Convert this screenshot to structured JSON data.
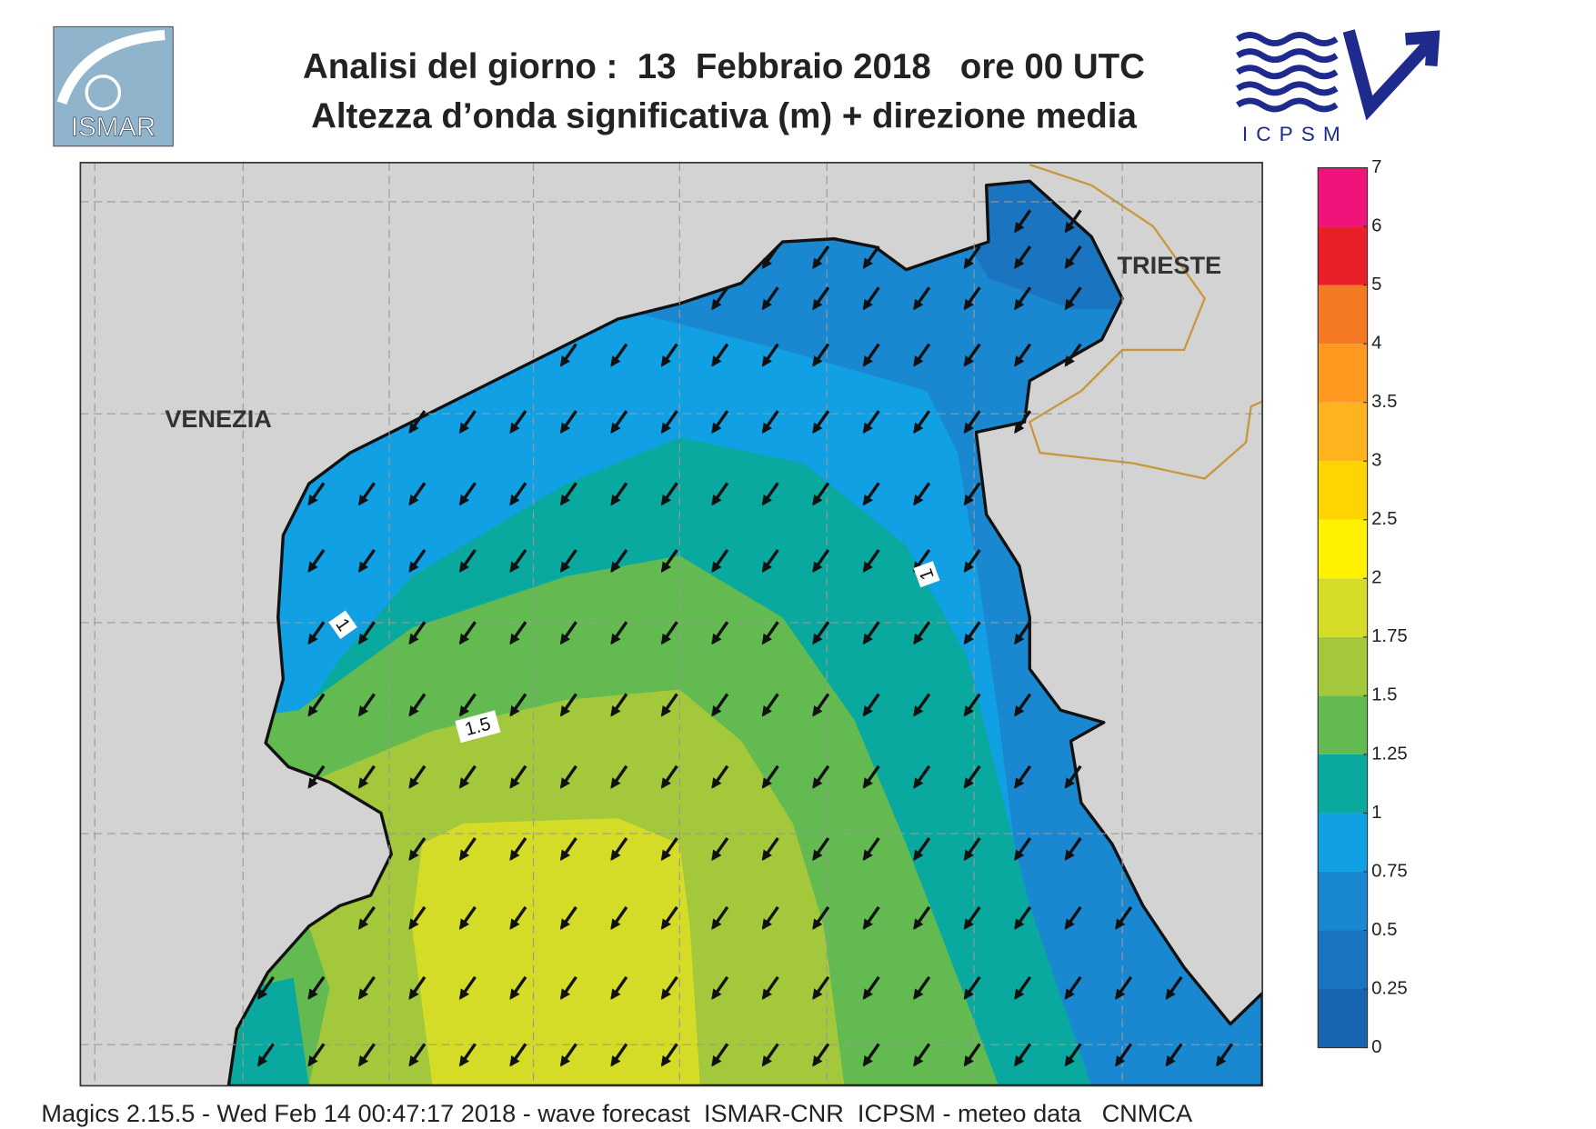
{
  "header": {
    "title": "Analisi del giorno :  13  Febbraio 2018   ore 00 UTC",
    "subtitle": "Altezza d’onda significativa (m) + direzione media"
  },
  "logos": {
    "left": "ISMAR",
    "right": "ICPSM"
  },
  "map": {
    "places": [
      "VENEZIA",
      "TRIESTE"
    ],
    "contour_labels": [
      "1",
      "1.5",
      "1"
    ]
  },
  "colorbar": {
    "ticks": [
      0,
      0.25,
      0.5,
      0.75,
      1,
      1.25,
      1.5,
      1.75,
      2,
      2.5,
      3,
      3.5,
      4,
      5,
      6,
      7
    ],
    "colors": [
      "#1764b0",
      "#1a74c0",
      "#1a88d0",
      "#12a0e4",
      "#0aa9a0",
      "#62ba50",
      "#a4c83c",
      "#d4dc28",
      "#fff200",
      "#ffd400",
      "#ffb41e",
      "#ff9a1e",
      "#f57822",
      "#e8202a",
      "#f0147a"
    ]
  },
  "footer": "Magics 2.15.5 - Wed Feb 14 00:47:17 2018 - wave forecast  ISMAR-CNR  ICPSM - meteo data   CNMCA"
}
